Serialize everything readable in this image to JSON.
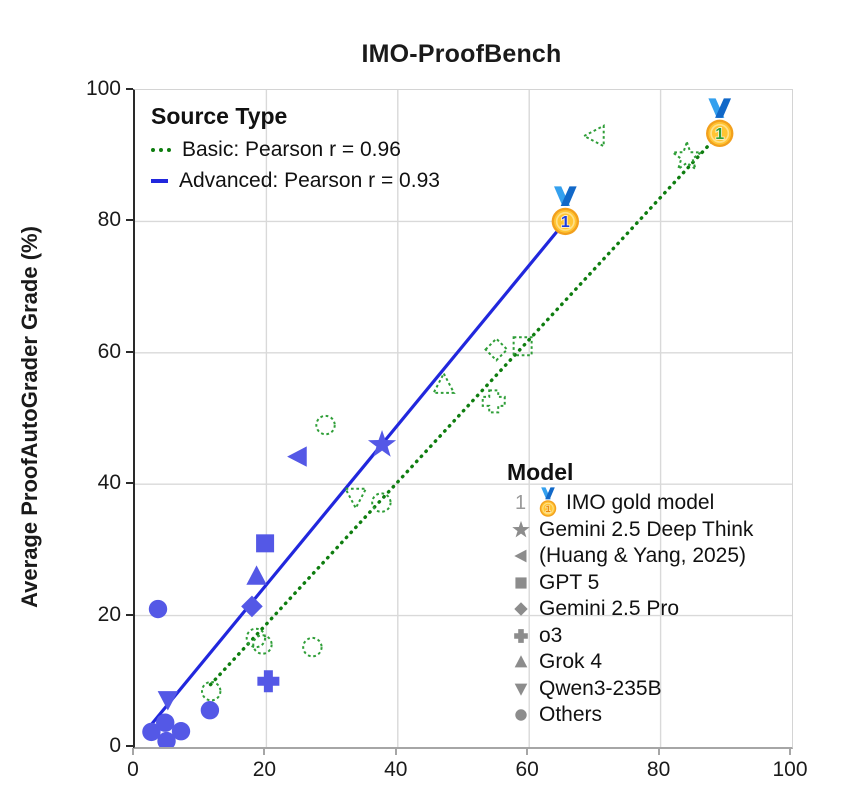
{
  "title": "IMO-ProofBench",
  "axes": {
    "ylabel": "Average ProofAutoGrader Grade (%)",
    "x_ticks": [
      0,
      20,
      40,
      60,
      80,
      100
    ],
    "y_ticks": [
      0,
      20,
      40,
      60,
      80,
      100
    ],
    "xlim": [
      0,
      100
    ],
    "ylim": [
      0,
      100
    ],
    "grid": true
  },
  "legend_source": {
    "title": "Source Type",
    "items": [
      {
        "label": "Basic: Pearson r = 0.96",
        "style": "dotted",
        "series": "Basic"
      },
      {
        "label": "Advanced: Pearson r = 0.93",
        "style": "solid",
        "series": "Advanced"
      }
    ]
  },
  "legend_model": {
    "title": "Model",
    "items": [
      {
        "marker": "medal",
        "label": "IMO gold model",
        "prefix": "1"
      },
      {
        "marker": "star",
        "label": "Gemini 2.5 Deep Think"
      },
      {
        "marker": "triangle-left",
        "label": "(Huang & Yang, 2025)"
      },
      {
        "marker": "square",
        "label": "GPT 5"
      },
      {
        "marker": "diamond",
        "label": "Gemini 2.5 Pro"
      },
      {
        "marker": "plus",
        "label": "o3"
      },
      {
        "marker": "triangle-up",
        "label": "Grok 4"
      },
      {
        "marker": "triangle-down",
        "label": "Qwen3-235B"
      },
      {
        "marker": "circle",
        "label": "Others"
      }
    ]
  },
  "colors": {
    "advanced_marker": "#5458e6",
    "advanced_line": "#2127dd",
    "basic_marker": "#2f9e38",
    "basic_line": "#0e7d0f",
    "legend_marker_gray": "#8c8c8c",
    "grid": "#d9d9d9",
    "medal_ring": "#f2a01d",
    "medal_face": "#ffc433",
    "medal_inner_ring": "#ffe089",
    "ribbon_light": "#34a0ee",
    "ribbon_dark": "#1168c8",
    "medal_number_advanced": "#1c3ce0",
    "medal_number_basic": "#2f9e38",
    "medal_number_legend": "#e8890c"
  },
  "chart_data": {
    "type": "scatter",
    "xlabel_ticks": [
      0,
      20,
      40,
      60,
      80,
      100
    ],
    "series": [
      {
        "name": "Basic",
        "pearson_r": 0.96,
        "marker_style": "hollow-dotted-green",
        "trend_line": {
          "x1": 11.5,
          "y1": 9.5,
          "x2": 89.0,
          "y2": 93.4
        },
        "points": [
          {
            "model": "IMO gold model",
            "marker": "medal",
            "x": 89.0,
            "y": 93.4
          },
          {
            "model": "Gemini 2.5 Deep Think",
            "marker": "star",
            "x": 84.0,
            "y": 89.8
          },
          {
            "model": "(Huang & Yang, 2025)",
            "marker": "triangle-left",
            "x": 70.0,
            "y": 93.0
          },
          {
            "model": "GPT 5",
            "marker": "square",
            "x": 59.0,
            "y": 61.0
          },
          {
            "model": "Gemini 2.5 Pro",
            "marker": "diamond",
            "x": 55.0,
            "y": 60.5
          },
          {
            "model": "o3",
            "marker": "plus",
            "x": 54.6,
            "y": 52.6
          },
          {
            "model": "Grok 4",
            "marker": "triangle-up",
            "x": 47.0,
            "y": 55.2
          },
          {
            "model": "Qwen3-235B",
            "marker": "triangle-down",
            "x": 33.6,
            "y": 38.0
          },
          {
            "model": "Others",
            "marker": "circle",
            "x": 37.5,
            "y": 37.2
          },
          {
            "model": "Others",
            "marker": "circle",
            "x": 29.0,
            "y": 49.0
          },
          {
            "model": "Others",
            "marker": "circle",
            "x": 27.0,
            "y": 15.2
          },
          {
            "model": "Others",
            "marker": "circle",
            "x": 19.4,
            "y": 15.6
          },
          {
            "model": "Others",
            "marker": "circle",
            "x": 18.4,
            "y": 16.6
          },
          {
            "model": "Others",
            "marker": "circle",
            "x": 11.6,
            "y": 8.5
          }
        ]
      },
      {
        "name": "Advanced",
        "pearson_r": 0.93,
        "marker_style": "filled-blue",
        "trend_line": {
          "x1": 2.3,
          "y1": 3.2,
          "x2": 65.5,
          "y2": 80.0
        },
        "points": [
          {
            "model": "IMO gold model",
            "marker": "medal",
            "x": 65.5,
            "y": 80.0
          },
          {
            "model": "Gemini 2.5 Deep Think",
            "marker": "star",
            "x": 37.6,
            "y": 46.0
          },
          {
            "model": "(Huang & Yang, 2025)",
            "marker": "triangle-left",
            "x": 24.8,
            "y": 44.2
          },
          {
            "model": "GPT 5",
            "marker": "square",
            "x": 19.8,
            "y": 31.0
          },
          {
            "model": "Grok 4",
            "marker": "triangle-up",
            "x": 18.5,
            "y": 26.0
          },
          {
            "model": "Gemini 2.5 Pro",
            "marker": "diamond",
            "x": 17.8,
            "y": 21.4
          },
          {
            "model": "o3",
            "marker": "plus",
            "x": 20.3,
            "y": 10.0
          },
          {
            "model": "Qwen3-235B",
            "marker": "triangle-down",
            "x": 5.0,
            "y": 7.2
          },
          {
            "model": "Others",
            "marker": "circle",
            "x": 3.5,
            "y": 21.0
          },
          {
            "model": "Others",
            "marker": "circle",
            "x": 11.4,
            "y": 5.6
          },
          {
            "model": "Others",
            "marker": "circle",
            "x": 7.0,
            "y": 2.4
          },
          {
            "model": "Others",
            "marker": "circle",
            "x": 4.6,
            "y": 3.7
          },
          {
            "model": "Others",
            "marker": "circle",
            "x": 4.8,
            "y": 0.9
          },
          {
            "model": "Others",
            "marker": "circle",
            "x": 2.5,
            "y": 2.3
          }
        ]
      }
    ]
  }
}
